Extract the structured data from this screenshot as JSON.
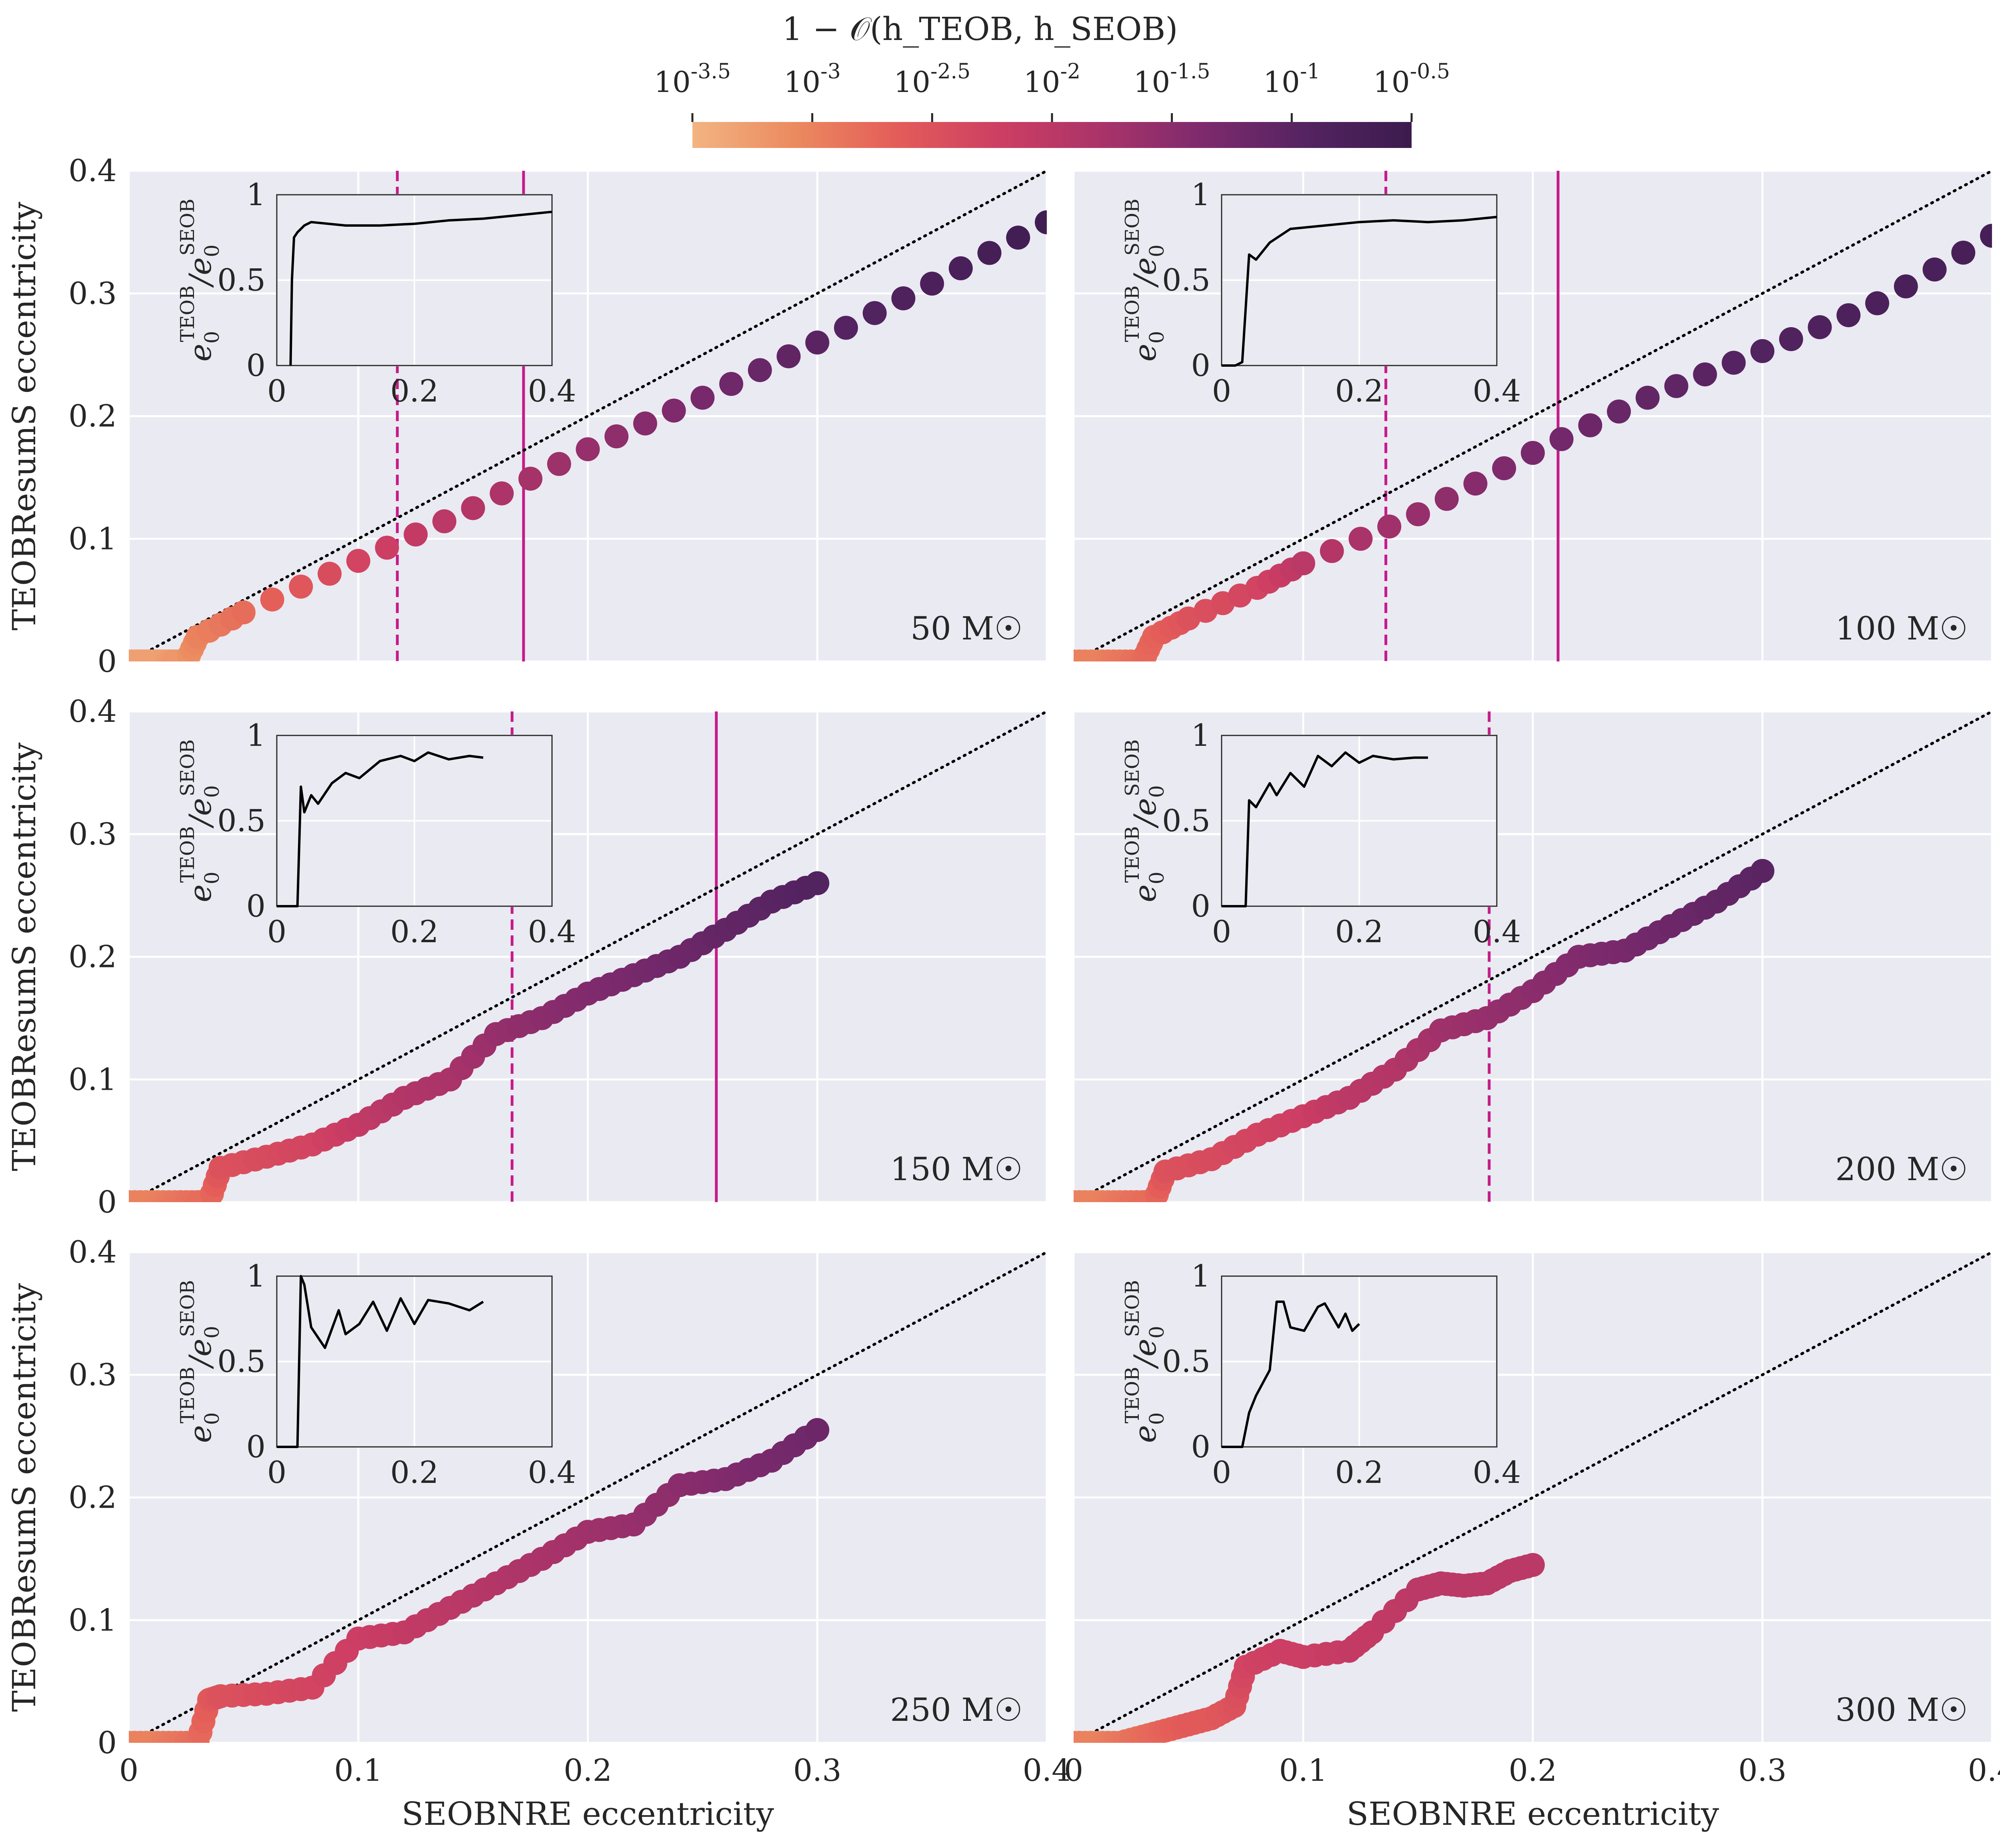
{
  "colors": {
    "axes_bg": "#eaeaf2",
    "grid": "#ffffff",
    "threshold_line": "#c51b8a",
    "diagonal": "#000000",
    "inset_line": "#000000",
    "colormap": [
      "#f3b482",
      "#eb8a5f",
      "#e45c59",
      "#cd3e63",
      "#a93369",
      "#7c2a6d",
      "#532360",
      "#3b1c4e"
    ]
  },
  "colorbar": {
    "title": "1 − 𝒪(h_TEOB, h_SEOB)",
    "tick_labels": [
      "10^-3.5",
      "10^-3",
      "10^-2.5",
      "10^-2",
      "10^-1.5",
      "10^-1",
      "10^-0.5"
    ],
    "range_log10": [
      -3.5,
      -0.5
    ]
  },
  "axes": {
    "xlabel": "SEOBNRE eccentricity",
    "ylabel": "TEOBResumS eccentricity",
    "x_ticks": [
      "0",
      "0.1",
      "0.2",
      "0.3",
      "0.4"
    ],
    "y_ticks": [
      "0",
      "0.1",
      "0.2",
      "0.3",
      "0.4"
    ],
    "inset_ylabel": "e_0^TEOB / e_0^SEOB",
    "inset_x_ticks": [
      "0",
      "0.2",
      "0.4"
    ],
    "inset_y_ticks": [
      "0",
      "0.5",
      "1"
    ]
  },
  "chart_data": [
    {
      "type": "scatter",
      "label": "50 M☉",
      "xlim": [
        0,
        0.4
      ],
      "ylim": [
        0,
        0.4
      ],
      "grid": true,
      "dashed_line_x": 0.117,
      "solid_line_x": 0.172,
      "x": [
        0.0,
        0.005,
        0.01,
        0.015,
        0.02,
        0.025,
        0.03,
        0.05,
        0.1,
        0.15,
        0.2,
        0.25,
        0.3,
        0.35,
        0.4
      ],
      "y": [
        0.0,
        0.0,
        0.0,
        0.0,
        0.0,
        0.0,
        0.02,
        0.04,
        0.082,
        0.125,
        0.173,
        0.215,
        0.26,
        0.308,
        0.358
      ],
      "color_log10": [
        -3.3,
        -3.3,
        -3.3,
        -3.3,
        -3.2,
        -3.2,
        -3.0,
        -2.8,
        -2.3,
        -1.9,
        -1.6,
        -1.3,
        -1.0,
        -0.8,
        -0.6
      ],
      "inset": {
        "x": [
          0.02,
          0.022,
          0.025,
          0.03,
          0.04,
          0.05,
          0.1,
          0.15,
          0.2,
          0.25,
          0.3,
          0.35,
          0.4
        ],
        "y": [
          0.0,
          0.5,
          0.75,
          0.78,
          0.82,
          0.84,
          0.82,
          0.82,
          0.83,
          0.85,
          0.86,
          0.88,
          0.9
        ]
      }
    },
    {
      "type": "scatter",
      "label": "100 M☉",
      "xlim": [
        0,
        0.4
      ],
      "ylim": [
        0,
        0.4
      ],
      "grid": true,
      "dashed_line_x": 0.136,
      "solid_line_x": 0.211,
      "x": [
        0.0,
        0.01,
        0.02,
        0.03,
        0.035,
        0.05,
        0.08,
        0.1,
        0.15,
        0.2,
        0.25,
        0.3,
        0.35,
        0.4
      ],
      "y": [
        0.0,
        0.0,
        0.0,
        0.0,
        0.02,
        0.035,
        0.06,
        0.08,
        0.12,
        0.17,
        0.215,
        0.253,
        0.292,
        0.347
      ],
      "color_log10": [
        -3.0,
        -3.0,
        -2.9,
        -2.8,
        -2.7,
        -2.5,
        -2.3,
        -2.0,
        -1.6,
        -1.3,
        -1.1,
        -0.9,
        -0.8,
        -0.7
      ],
      "inset": {
        "x": [
          0.0,
          0.02,
          0.03,
          0.04,
          0.05,
          0.07,
          0.1,
          0.15,
          0.2,
          0.25,
          0.3,
          0.35,
          0.4
        ],
        "y": [
          0.0,
          0.0,
          0.02,
          0.65,
          0.62,
          0.72,
          0.8,
          0.82,
          0.84,
          0.85,
          0.84,
          0.85,
          0.87
        ]
      }
    },
    {
      "type": "scatter",
      "label": "150 M☉",
      "xlim": [
        0,
        0.4
      ],
      "ylim": [
        0,
        0.4
      ],
      "grid": true,
      "dashed_line_x": 0.167,
      "solid_line_x": 0.256,
      "x": [
        0.0,
        0.01,
        0.02,
        0.03,
        0.035,
        0.04,
        0.06,
        0.08,
        0.1,
        0.12,
        0.14,
        0.16,
        0.18,
        0.2,
        0.22,
        0.24,
        0.26,
        0.28,
        0.3
      ],
      "y": [
        0.0,
        0.0,
        0.0,
        0.0,
        0.0,
        0.028,
        0.037,
        0.047,
        0.063,
        0.085,
        0.1,
        0.137,
        0.15,
        0.17,
        0.185,
        0.2,
        0.222,
        0.245,
        0.26
      ],
      "color_log10": [
        -3.0,
        -3.0,
        -2.9,
        -2.8,
        -2.8,
        -2.5,
        -2.4,
        -2.3,
        -2.1,
        -1.9,
        -1.8,
        -1.6,
        -1.5,
        -1.4,
        -1.3,
        -1.2,
        -1.1,
        -1.0,
        -0.9
      ],
      "inset": {
        "x": [
          0.0,
          0.03,
          0.035,
          0.04,
          0.05,
          0.06,
          0.08,
          0.1,
          0.12,
          0.15,
          0.18,
          0.2,
          0.22,
          0.25,
          0.28,
          0.3
        ],
        "y": [
          0.0,
          0.0,
          0.7,
          0.55,
          0.65,
          0.6,
          0.72,
          0.78,
          0.75,
          0.85,
          0.88,
          0.85,
          0.9,
          0.86,
          0.88,
          0.87
        ]
      }
    },
    {
      "type": "scatter",
      "label": "200 M☉",
      "xlim": [
        0,
        0.4
      ],
      "ylim": [
        0,
        0.4
      ],
      "grid": true,
      "dashed_line_x": 0.181,
      "x": [
        0.0,
        0.01,
        0.02,
        0.03,
        0.035,
        0.04,
        0.06,
        0.08,
        0.1,
        0.12,
        0.14,
        0.16,
        0.18,
        0.2,
        0.22,
        0.24,
        0.26,
        0.28,
        0.3
      ],
      "y": [
        0.0,
        0.0,
        0.0,
        0.0,
        0.0,
        0.025,
        0.035,
        0.055,
        0.07,
        0.085,
        0.108,
        0.14,
        0.15,
        0.172,
        0.2,
        0.205,
        0.225,
        0.245,
        0.27
      ],
      "color_log10": [
        -3.0,
        -3.0,
        -2.9,
        -2.8,
        -2.8,
        -2.5,
        -2.4,
        -2.3,
        -2.2,
        -2.0,
        -1.9,
        -1.7,
        -1.6,
        -1.5,
        -1.4,
        -1.3,
        -1.2,
        -1.1,
        -1.0
      ],
      "inset": {
        "x": [
          0.0,
          0.035,
          0.04,
          0.05,
          0.07,
          0.08,
          0.1,
          0.12,
          0.14,
          0.16,
          0.18,
          0.2,
          0.22,
          0.25,
          0.28,
          0.3
        ],
        "y": [
          0.0,
          0.0,
          0.62,
          0.58,
          0.72,
          0.65,
          0.78,
          0.7,
          0.88,
          0.82,
          0.9,
          0.84,
          0.88,
          0.86,
          0.87,
          0.87
        ]
      }
    },
    {
      "type": "scatter",
      "label": "250 M☉",
      "xlim": [
        0,
        0.4
      ],
      "ylim": [
        0,
        0.4
      ],
      "grid": true,
      "x": [
        0.0,
        0.01,
        0.02,
        0.03,
        0.035,
        0.04,
        0.06,
        0.08,
        0.1,
        0.12,
        0.14,
        0.16,
        0.18,
        0.2,
        0.22,
        0.24,
        0.26,
        0.28,
        0.3
      ],
      "y": [
        0.0,
        0.0,
        0.0,
        0.0,
        0.035,
        0.038,
        0.04,
        0.045,
        0.085,
        0.09,
        0.11,
        0.13,
        0.15,
        0.172,
        0.178,
        0.21,
        0.215,
        0.23,
        0.255
      ],
      "color_log10": [
        -3.0,
        -3.0,
        -2.9,
        -2.8,
        -2.6,
        -2.5,
        -2.4,
        -2.3,
        -2.2,
        -2.1,
        -2.0,
        -1.9,
        -1.8,
        -1.7,
        -1.6,
        -1.5,
        -1.4,
        -1.3,
        -1.2
      ],
      "inset": {
        "x": [
          0.0,
          0.03,
          0.035,
          0.04,
          0.05,
          0.07,
          0.09,
          0.1,
          0.12,
          0.14,
          0.16,
          0.18,
          0.2,
          0.22,
          0.25,
          0.28,
          0.3
        ],
        "y": [
          0.0,
          0.0,
          1.0,
          0.95,
          0.7,
          0.58,
          0.8,
          0.66,
          0.72,
          0.85,
          0.68,
          0.87,
          0.72,
          0.86,
          0.84,
          0.8,
          0.85
        ]
      }
    },
    {
      "type": "scatter",
      "label": "300 M☉",
      "xlim": [
        0,
        0.4
      ],
      "ylim": [
        0,
        0.4
      ],
      "grid": true,
      "x": [
        0.0,
        0.01,
        0.02,
        0.03,
        0.04,
        0.05,
        0.06,
        0.07,
        0.075,
        0.09,
        0.1,
        0.12,
        0.13,
        0.15,
        0.16,
        0.17,
        0.18,
        0.19,
        0.2
      ],
      "y": [
        0.0,
        0.0,
        0.0,
        0.005,
        0.01,
        0.015,
        0.02,
        0.03,
        0.062,
        0.075,
        0.07,
        0.075,
        0.09,
        0.125,
        0.13,
        0.128,
        0.13,
        0.14,
        0.145
      ],
      "color_log10": [
        -3.0,
        -3.0,
        -2.9,
        -2.8,
        -2.7,
        -2.6,
        -2.6,
        -2.5,
        -2.3,
        -2.2,
        -2.2,
        -2.1,
        -2.1,
        -2.0,
        -2.0,
        -2.0,
        -2.0,
        -2.0,
        -2.0
      ],
      "inset": {
        "x": [
          0.0,
          0.03,
          0.04,
          0.05,
          0.07,
          0.08,
          0.09,
          0.1,
          0.12,
          0.14,
          0.15,
          0.17,
          0.18,
          0.19,
          0.2
        ],
        "y": [
          0.0,
          0.0,
          0.2,
          0.3,
          0.45,
          0.85,
          0.85,
          0.7,
          0.68,
          0.82,
          0.84,
          0.7,
          0.78,
          0.68,
          0.72
        ]
      }
    }
  ],
  "panel_labels": [
    "50 M☉",
    "100 M☉",
    "150 M☉",
    "200 M☉",
    "250 M☉",
    "300 M☉"
  ]
}
